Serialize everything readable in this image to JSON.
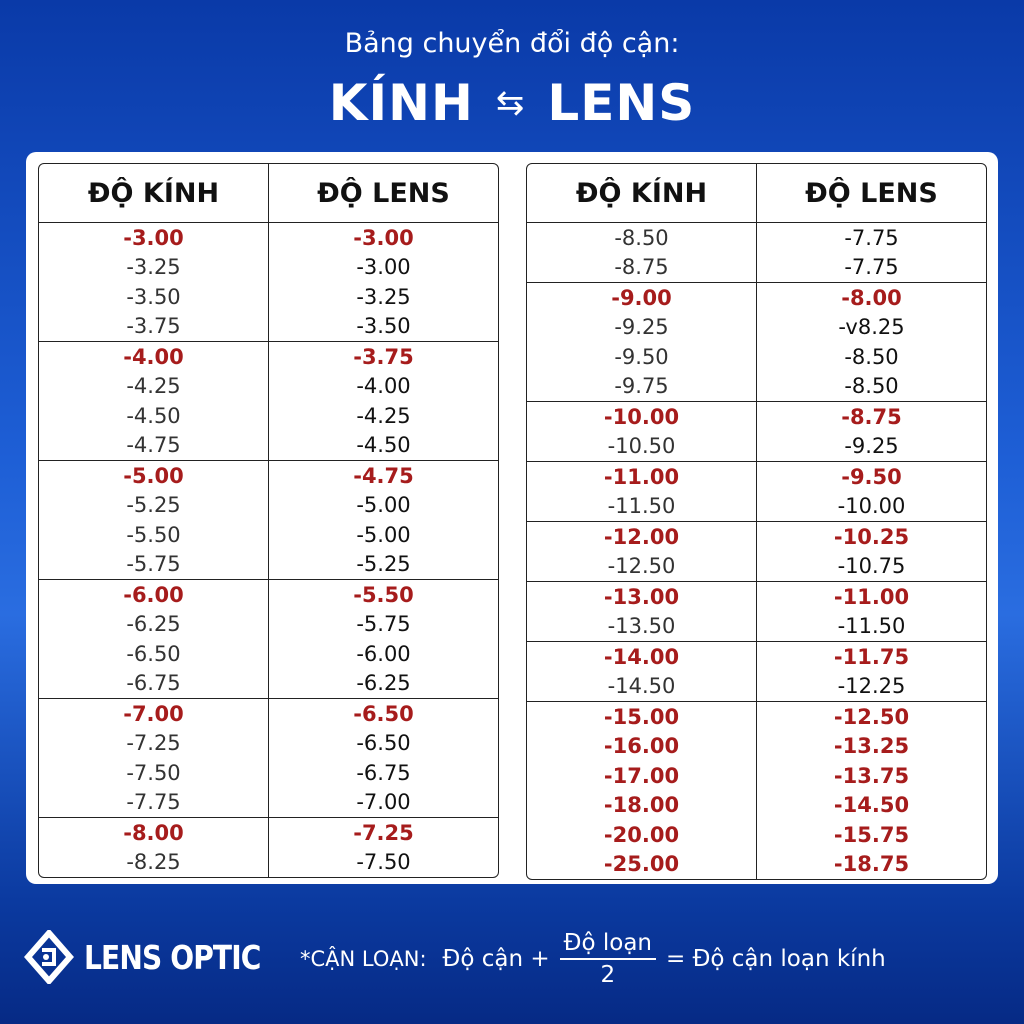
{
  "header": {
    "subtitle": "Bảng chuyển đổi độ cận:",
    "title_left": "KÍNH",
    "title_right": "LENS",
    "arrows_icon": "⇆"
  },
  "colors": {
    "highlight": "#a61c1c",
    "background": "#1e5fd6"
  },
  "columns": {
    "kinh": "ĐỘ KÍNH",
    "lens": "ĐỘ LENS"
  },
  "tables": [
    {
      "groups": [
        [
          {
            "kinh": "-3.00",
            "lens": "-3.00",
            "hl": true
          },
          {
            "kinh": "-3.25",
            "lens": "-3.00"
          },
          {
            "kinh": "-3.50",
            "lens": "-3.25"
          },
          {
            "kinh": "-3.75",
            "lens": "-3.50"
          }
        ],
        [
          {
            "kinh": "-4.00",
            "lens": "-3.75",
            "hl": true
          },
          {
            "kinh": "-4.25",
            "lens": "-4.00"
          },
          {
            "kinh": "-4.50",
            "lens": "-4.25"
          },
          {
            "kinh": "-4.75",
            "lens": "-4.50"
          }
        ],
        [
          {
            "kinh": "-5.00",
            "lens": "-4.75",
            "hl": true
          },
          {
            "kinh": "-5.25",
            "lens": "-5.00"
          },
          {
            "kinh": "-5.50",
            "lens": "-5.00"
          },
          {
            "kinh": "-5.75",
            "lens": "-5.25"
          }
        ],
        [
          {
            "kinh": "-6.00",
            "lens": "-5.50",
            "hl": true
          },
          {
            "kinh": "-6.25",
            "lens": "-5.75"
          },
          {
            "kinh": "-6.50",
            "lens": "-6.00"
          },
          {
            "kinh": "-6.75",
            "lens": "-6.25"
          }
        ],
        [
          {
            "kinh": "-7.00",
            "lens": "-6.50",
            "hl": true
          },
          {
            "kinh": "-7.25",
            "lens": "-6.50"
          },
          {
            "kinh": "-7.50",
            "lens": "-6.75"
          },
          {
            "kinh": "-7.75",
            "lens": "-7.00"
          }
        ],
        [
          {
            "kinh": "-8.00",
            "lens": "-7.25",
            "hl": true
          },
          {
            "kinh": "-8.25",
            "lens": "-7.50"
          }
        ]
      ]
    },
    {
      "groups": [
        [
          {
            "kinh": "-8.50",
            "lens": "-7.75"
          },
          {
            "kinh": "-8.75",
            "lens": "-7.75"
          }
        ],
        [
          {
            "kinh": "-9.00",
            "lens": "-8.00",
            "hl": true
          },
          {
            "kinh": "-9.25",
            "lens": "-v8.25"
          },
          {
            "kinh": "-9.50",
            "lens": "-8.50"
          },
          {
            "kinh": "-9.75",
            "lens": "-8.50"
          }
        ],
        [
          {
            "kinh": "-10.00",
            "lens": "-8.75",
            "hl": true
          },
          {
            "kinh": "-10.50",
            "lens": "-9.25"
          }
        ],
        [
          {
            "kinh": "-11.00",
            "lens": "-9.50",
            "hl": true
          },
          {
            "kinh": "-11.50",
            "lens": "-10.00"
          }
        ],
        [
          {
            "kinh": "-12.00",
            "lens": "-10.25",
            "hl": true
          },
          {
            "kinh": "-12.50",
            "lens": "-10.75"
          }
        ],
        [
          {
            "kinh": "-13.00",
            "lens": "-11.00",
            "hl": true
          },
          {
            "kinh": "-13.50",
            "lens": "-11.50"
          }
        ],
        [
          {
            "kinh": "-14.00",
            "lens": "-11.75",
            "hl": true
          },
          {
            "kinh": "-14.50",
            "lens": "-12.25"
          }
        ],
        [
          {
            "kinh": "-15.00",
            "lens": "-12.50",
            "hl": true
          },
          {
            "kinh": "-16.00",
            "lens": "-13.25",
            "hl": true
          },
          {
            "kinh": "-17.00",
            "lens": "-13.75",
            "hl": true
          },
          {
            "kinh": "-18.00",
            "lens": "-14.50",
            "hl": true
          },
          {
            "kinh": "-20.00",
            "lens": "-15.75",
            "hl": true
          },
          {
            "kinh": "-25.00",
            "lens": "-18.75",
            "hl": true
          }
        ]
      ]
    }
  ],
  "footer": {
    "logo_text": "LENS OPTIC",
    "formula_label": "*CẬN LOẠN:",
    "term1": "Độ cận +",
    "numerator": "Độ loạn",
    "denominator": "2",
    "result": "= Độ cận loạn kính"
  }
}
